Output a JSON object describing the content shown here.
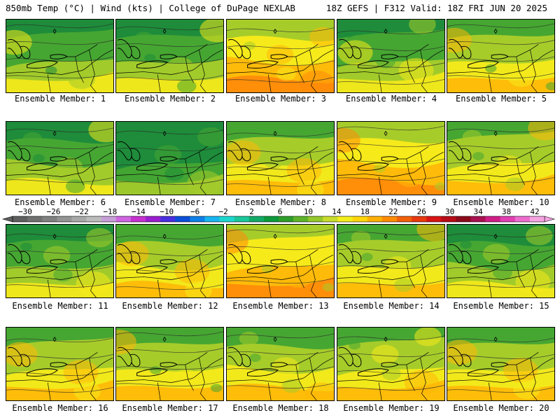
{
  "header": {
    "left": "850mb Temp (°C) | Wind (kts) | College of DuPage NEXLAB",
    "right": "18Z GEFS | F312 Valid: 18Z FRI JUN 20 2025"
  },
  "members": [
    {
      "label": "Ensemble Member: 1",
      "warmth": 0.3
    },
    {
      "label": "Ensemble Member: 2",
      "warmth": 0.35
    },
    {
      "label": "Ensemble Member: 3",
      "warmth": 0.65
    },
    {
      "label": "Ensemble Member: 4",
      "warmth": 0.3
    },
    {
      "label": "Ensemble Member: 5",
      "warmth": 0.6
    },
    {
      "label": "Ensemble Member: 6",
      "warmth": 0.35
    },
    {
      "label": "Ensemble Member: 7",
      "warmth": 0.1
    },
    {
      "label": "Ensemble Member: 8",
      "warmth": 0.45
    },
    {
      "label": "Ensemble Member: 9",
      "warmth": 0.65
    },
    {
      "label": "Ensemble Member: 10",
      "warmth": 0.45
    },
    {
      "label": "Ensemble Member: 11",
      "warmth": 0.2
    },
    {
      "label": "Ensemble Member: 12",
      "warmth": 0.6
    },
    {
      "label": "Ensemble Member: 13",
      "warmth": 0.65
    },
    {
      "label": "Ensemble Member: 14",
      "warmth": 0.5
    },
    {
      "label": "Ensemble Member: 15",
      "warmth": 0.25
    },
    {
      "label": "Ensemble Member: 16",
      "warmth": 0.4
    },
    {
      "label": "Ensemble Member: 17",
      "warmth": 0.45
    },
    {
      "label": "Ensemble Member: 18",
      "warmth": 0.55
    },
    {
      "label": "Ensemble Member: 19",
      "warmth": 0.45
    },
    {
      "label": "Ensemble Member: 20",
      "warmth": 0.55
    }
  ],
  "colorbar": {
    "ticks": [
      "−30",
      "−26",
      "−22",
      "−18",
      "−14",
      "−10",
      "−6",
      "−2",
      "2",
      "6",
      "10",
      "14",
      "18",
      "22",
      "26",
      "30",
      "34",
      "38",
      "42"
    ],
    "colors": [
      "#5f5f5f",
      "#707070",
      "#808080",
      "#949494",
      "#a8a8a8",
      "#bcbcbc",
      "#c79fd8",
      "#d064e2",
      "#c730d0",
      "#9a1ed0",
      "#4a2fe0",
      "#0b4fd8",
      "#0d7fe8",
      "#18b4f0",
      "#1ed6d0",
      "#1ac69a",
      "#12aa66",
      "#0c9a3c",
      "#2e9e2a",
      "#5fb32a",
      "#94c82c",
      "#c7dc2c",
      "#f4ee1c",
      "#ffd60c",
      "#ffb004",
      "#ff8c04",
      "#f2600a",
      "#e83a0e",
      "#d81414",
      "#b80c18",
      "#8c0a1a",
      "#a81050",
      "#d01c86",
      "#e240b4",
      "#ee6cd0",
      "#f6a4e2"
    ]
  },
  "palette": {
    "green_dark": "#1e8c3a",
    "green": "#46a632",
    "yellowgreen": "#a6cc2a",
    "yellow": "#f6ea1a",
    "orange_light": "#ffb808",
    "orange": "#ff8a0a",
    "red": "#e8421a"
  }
}
